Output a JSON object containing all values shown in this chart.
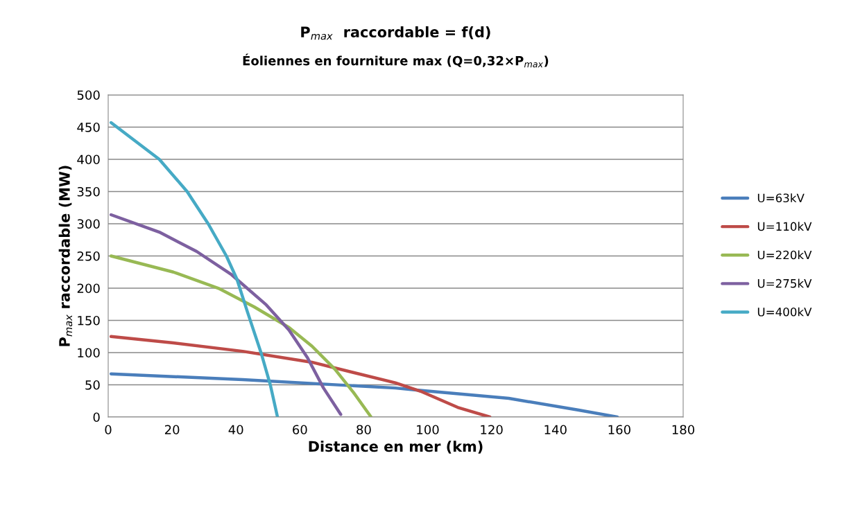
{
  "chart_data": {
    "type": "line",
    "title": "P$_{max}$  raccordable = f(d)",
    "subtitle": "Éoliennes en fourniture max (Q=0,32×P$_{max}$)",
    "xlabel": "Distance en mer (km)",
    "ylabel": "P$_{max}$ raccordable (MW)",
    "xlim": [
      0,
      180
    ],
    "xticks": [
      0,
      20,
      40,
      60,
      80,
      100,
      120,
      140,
      160,
      180
    ],
    "ylim": [
      0,
      500
    ],
    "yticks": [
      0,
      50,
      100,
      150,
      200,
      250,
      300,
      350,
      400,
      450,
      500
    ],
    "grid": "y",
    "legend": "right",
    "marker": "none",
    "line_style": "solid",
    "series": [
      {
        "name": "U=63kV",
        "color": "#4a7ebb",
        "x": [
          0.9,
          42.1,
          89.9,
          96.4,
          125.4,
          147,
          159.4
        ],
        "values": [
          67,
          58,
          45,
          42,
          29,
          11,
          0
        ]
      },
      {
        "name": "U=110kV",
        "color": "#be4b48",
        "x": [
          0.9,
          20.4,
          42.1,
          63.8,
          89.9,
          97.8,
          109.4,
          119.5
        ],
        "values": [
          125,
          115,
          102,
          85,
          53,
          40,
          15,
          0
        ]
      },
      {
        "name": "U=220kV",
        "color": "#98b954",
        "x": [
          0.9,
          20.4,
          34.9,
          45.7,
          56.6,
          63.8,
          71,
          76.8,
          82.3
        ],
        "values": [
          250,
          225,
          199,
          171,
          139,
          110,
          74,
          38,
          0
        ]
      },
      {
        "name": "U=275kV",
        "color": "#7d60a0",
        "x": [
          0.9,
          16,
          27.7,
          38.6,
          49.5,
          56.6,
          62.4,
          67.4,
          72.8
        ],
        "values": [
          314,
          287,
          257,
          221,
          174,
          135,
          92,
          45,
          4
        ]
      },
      {
        "name": "U=400kV",
        "color": "#46aac5",
        "x": [
          0.9,
          16,
          24.7,
          31.3,
          37,
          40.3,
          43.6,
          47.9,
          50.8,
          53
        ],
        "values": [
          457,
          400,
          350,
          300,
          250,
          214,
          163,
          99,
          49,
          0
        ]
      }
    ]
  }
}
